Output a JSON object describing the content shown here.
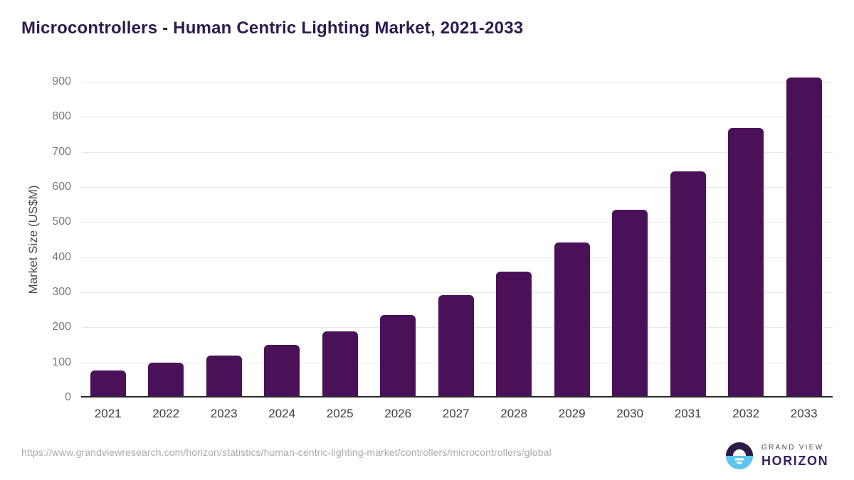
{
  "header": {
    "title": "Microcontrollers - Human Centric Lighting Market, 2021-2033"
  },
  "chart_data": {
    "type": "bar",
    "title": "Microcontrollers - Human Centric Lighting Market, 2021-2033",
    "categories": [
      "2021",
      "2022",
      "2023",
      "2024",
      "2025",
      "2026",
      "2027",
      "2028",
      "2029",
      "2030",
      "2031",
      "2032",
      "2033"
    ],
    "values": [
      72,
      95,
      116,
      146,
      184,
      232,
      287,
      355,
      438,
      531,
      640,
      765,
      908
    ],
    "xlabel": "",
    "ylabel": "Market Size (US$M)",
    "ylim": [
      0,
      900
    ],
    "ytick_step": 100,
    "yticks": [
      0,
      100,
      200,
      300,
      400,
      500,
      600,
      700,
      800,
      900
    ],
    "grid": true,
    "legend": "none",
    "bar_color": "#4a1159"
  },
  "footer": {
    "source_url": "https://www.grandviewresearch.com/horizon/statistics/human-centric-lighting-market/controllers/microcontrollers/global",
    "logo": {
      "icon": "grand-view-horizon-logo-icon",
      "line1": "GRAND VIEW",
      "line2": "HORIZON"
    }
  },
  "colors": {
    "title": "#2e1a4f",
    "bar": "#4a1159",
    "gridline": "#e8e8e8",
    "axis_line": "#2b2b2b",
    "y_tick_label": "#7a7a7a",
    "x_tick_label": "#3d3d3d",
    "source_text": "#ababab",
    "logo_purple": "#2e1a47",
    "logo_blue": "#5fc4ee",
    "logo_text": "#3b2064"
  }
}
